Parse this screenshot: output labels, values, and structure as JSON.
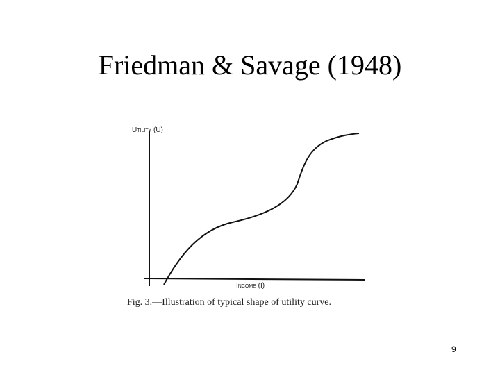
{
  "slide": {
    "title": "Friedman & Savage (1948)",
    "figure": {
      "y_axis_label": "Utility (U)",
      "x_axis_label": "Income (I)",
      "caption": "Fig. 3.—Illustration of typical shape of utility curve."
    },
    "page_number": "9"
  }
}
